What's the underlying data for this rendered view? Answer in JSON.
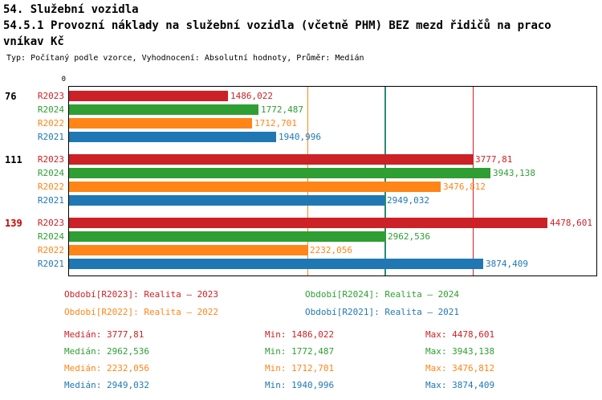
{
  "header": {
    "title_line1": "54. Služební vozidla",
    "title_line2": "54.5.1 Provozní náklady na služební vozidla (včetně PHM) BEZ mezd řidičů na praco",
    "title_line3": "vníkav Kč",
    "subtitle": "Typ: Počítaný podle vzorce, Vyhodnocení: Absolutní hodnoty, Průměr: Medián"
  },
  "colors": {
    "R2023": "#cc2126",
    "R2024": "#2f9e33",
    "R2022": "#ff8517",
    "R2021": "#1f78b4",
    "highlight_group": "#cc0000",
    "axis": "#000000"
  },
  "chart_data": {
    "type": "bar",
    "orientation": "horizontal",
    "origin_label": "0",
    "xlim": [
      0,
      4950
    ],
    "grid": false,
    "series_order": [
      "R2023",
      "R2024",
      "R2022",
      "R2021"
    ],
    "groups": [
      {
        "label": "76",
        "highlighted": false,
        "bars": [
          {
            "series": "R2023",
            "value": 1486.022,
            "display": "1486,022"
          },
          {
            "series": "R2024",
            "value": 1772.487,
            "display": "1772,487"
          },
          {
            "series": "R2022",
            "value": 1712.701,
            "display": "1712,701"
          },
          {
            "series": "R2021",
            "value": 1940.996,
            "display": "1940,996"
          }
        ]
      },
      {
        "label": "111",
        "highlighted": false,
        "bars": [
          {
            "series": "R2023",
            "value": 3777.81,
            "display": "3777,81"
          },
          {
            "series": "R2024",
            "value": 3943.138,
            "display": "3943,138"
          },
          {
            "series": "R2022",
            "value": 3476.812,
            "display": "3476,812"
          },
          {
            "series": "R2021",
            "value": 2949.032,
            "display": "2949,032"
          }
        ]
      },
      {
        "label": "139",
        "highlighted": true,
        "bars": [
          {
            "series": "R2023",
            "value": 4478.601,
            "display": "4478,601"
          },
          {
            "series": "R2024",
            "value": 2962.536,
            "display": "2962,536"
          },
          {
            "series": "R2022",
            "value": 2232.056,
            "display": "2232,056"
          },
          {
            "series": "R2021",
            "value": 3874.409,
            "display": "3874,409"
          }
        ]
      }
    ],
    "median_lines": [
      {
        "series": "R2022",
        "value": 2232.056
      },
      {
        "series": "R2021",
        "value": 2949.032
      },
      {
        "series": "R2024",
        "value": 2962.536
      },
      {
        "series": "R2023",
        "value": 3777.81
      }
    ],
    "legend": [
      {
        "series": "R2023",
        "label": "Období[R2023]: Realita – 2023"
      },
      {
        "series": "R2024",
        "label": "Období[R2024]: Realita – 2024"
      },
      {
        "series": "R2022",
        "label": "Období[R2022]: Realita – 2022"
      },
      {
        "series": "R2021",
        "label": "Období[R2021]: Realita – 2021"
      }
    ],
    "stat_labels": {
      "median": "Medián",
      "min": "Min",
      "max": "Max"
    },
    "stats": [
      {
        "series": "R2023",
        "median": "3777,81",
        "min": "1486,022",
        "max": "4478,601"
      },
      {
        "series": "R2024",
        "median": "2962,536",
        "min": "1772,487",
        "max": "3943,138"
      },
      {
        "series": "R2022",
        "median": "2232,056",
        "min": "1712,701",
        "max": "3476,812"
      },
      {
        "series": "R2021",
        "median": "2949,032",
        "min": "1940,996",
        "max": "3874,409"
      }
    ]
  }
}
